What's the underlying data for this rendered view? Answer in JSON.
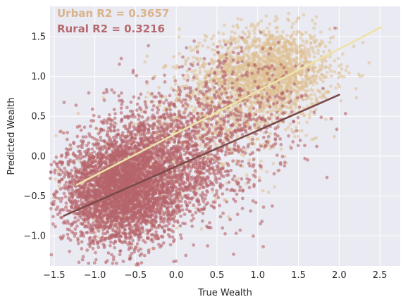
{
  "chart_data": {
    "type": "scatter",
    "title": "",
    "xlabel": "True Wealth",
    "ylabel": "Predicted Wealth",
    "xlim": [
      -1.55,
      2.75
    ],
    "ylim": [
      -1.38,
      1.88
    ],
    "xticks": [
      -1.5,
      -1.0,
      -0.5,
      0.0,
      0.5,
      1.0,
      1.5,
      2.0,
      2.5
    ],
    "xtick_labels": [
      "−1.5",
      "−1.0",
      "−0.5",
      "0.0",
      "0.5",
      "1.0",
      "1.5",
      "2.0",
      "2.5"
    ],
    "yticks": [
      -1.0,
      -0.5,
      0.0,
      0.5,
      1.0,
      1.5
    ],
    "ytick_labels": [
      "−1.0",
      "−0.5",
      "0.0",
      "0.5",
      "1.0",
      "1.5"
    ],
    "grid": true,
    "background": "#eaeaf2",
    "annotations": [
      {
        "text": "Urban R2 = 0.3657",
        "color": "#d9b38c",
        "position": "top-left"
      },
      {
        "text": "Rural R2 = 0.3216",
        "color": "#b56a6f",
        "position": "top-left"
      }
    ],
    "series": [
      {
        "group": "urban",
        "kind": "scatter",
        "color": "#dfbf92",
        "opacity": 0.55,
        "clusters": [
          {
            "cx": 1.15,
            "cy": 1.05,
            "sx": 0.38,
            "sy": 0.28,
            "n": 1700
          },
          {
            "cx": 0.55,
            "cy": 0.55,
            "sx": 0.45,
            "sy": 0.38,
            "n": 700
          },
          {
            "cx": -0.5,
            "cy": -0.3,
            "sx": 0.45,
            "sy": 0.35,
            "n": 350
          }
        ]
      },
      {
        "group": "rural",
        "kind": "scatter",
        "color": "#b5646b",
        "opacity": 0.6,
        "clusters": [
          {
            "cx": -0.7,
            "cy": -0.45,
            "sx": 0.35,
            "sy": 0.32,
            "n": 3200
          },
          {
            "cx": -0.15,
            "cy": -0.05,
            "sx": 0.45,
            "sy": 0.38,
            "n": 1600
          },
          {
            "cx": 0.7,
            "cy": 0.5,
            "sx": 0.45,
            "sy": 0.45,
            "n": 500
          }
        ]
      },
      {
        "group": "urban-fit",
        "kind": "line",
        "color": "#ede3a8",
        "x": [
          -1.22,
          2.52
        ],
        "y": [
          -0.36,
          1.62
        ]
      },
      {
        "group": "rural-fit",
        "kind": "line",
        "color": "#7a4a4a",
        "x": [
          -1.38,
          2.0
        ],
        "y": [
          -0.75,
          0.77
        ]
      }
    ]
  }
}
